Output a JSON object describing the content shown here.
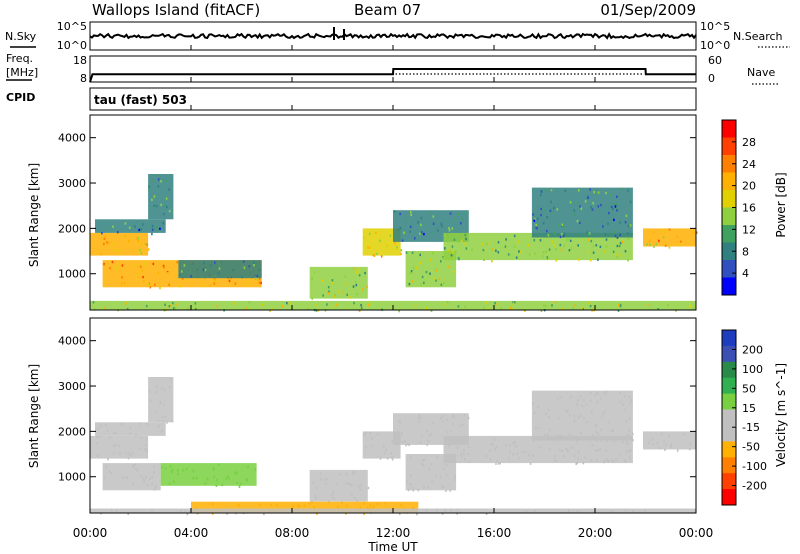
{
  "header": {
    "station": "Wallops Island (fitACF)",
    "beam": "Beam 07",
    "date": "01/Sep/2009"
  },
  "top_panel": {
    "left_label": "N.Sky",
    "right_label": "N.Search",
    "tick_top_left": "10^5",
    "tick_bottom_left": "10^0",
    "tick_top_right": "10^5",
    "tick_bottom_right": "10^0"
  },
  "freq_panel": {
    "left_label_line1": "Freq.",
    "left_label_line2": "[MHz]",
    "left_tick_top": "18",
    "left_tick_bottom": "8",
    "right_label": "Nave",
    "right_tick_top": "60",
    "right_tick_bottom": "0"
  },
  "cpid": {
    "label": "CPID",
    "value": "tau (fast) 503"
  },
  "power_colorbar": {
    "label": "Power [dB]",
    "ticks": [
      "28",
      "24",
      "20",
      "16",
      "12",
      "8",
      "4"
    ],
    "colors": [
      "#ff0000",
      "#ff4000",
      "#ff8000",
      "#ffb000",
      "#e0d000",
      "#90d040",
      "#40a060",
      "#308080",
      "#3050c0",
      "#0000ff"
    ]
  },
  "velocity_colorbar": {
    "label": "Velocity [m s^-1]",
    "ticks": [
      "200",
      "100",
      "50",
      "15",
      "-15",
      "-50",
      "-100",
      "-200"
    ],
    "colors": [
      "#1e3cbe",
      "#3c50b4",
      "#2a8a4a",
      "#30b050",
      "#78d040",
      "#c0c0c0",
      "#c0c0c0",
      "#ffb000",
      "#ff8000",
      "#ff4000",
      "#ff0000"
    ]
  },
  "chart_data": [
    {
      "type": "heatmap",
      "name": "power",
      "ylabel": "Slant Range [km]",
      "xlabel": "Time UT",
      "xlim": [
        0,
        24
      ],
      "ylim": [
        200,
        4500
      ],
      "y_ticks": [
        1000,
        2000,
        3000,
        4000
      ],
      "x_tick_labels": [
        "00:00",
        "04:00",
        "08:00",
        "12:00",
        "16:00",
        "20:00",
        "00:00"
      ],
      "regions": [
        {
          "t0": 0.0,
          "t1": 2.3,
          "r0": 1400,
          "r1": 1900,
          "level": 20
        },
        {
          "t0": 0.2,
          "t1": 3.0,
          "r0": 1900,
          "r1": 2200,
          "level": 10
        },
        {
          "t0": 2.3,
          "t1": 3.3,
          "r0": 2200,
          "r1": 3200,
          "level": 10
        },
        {
          "t0": 0.5,
          "t1": 6.8,
          "r0": 700,
          "r1": 1300,
          "level": 22
        },
        {
          "t0": 3.5,
          "t1": 6.8,
          "r0": 900,
          "r1": 1300,
          "level": 10
        },
        {
          "t0": 8.7,
          "t1": 11.0,
          "r0": 450,
          "r1": 1150,
          "level": 16
        },
        {
          "t0": 10.8,
          "t1": 12.3,
          "r0": 1400,
          "r1": 2000,
          "level": 18
        },
        {
          "t0": 12.0,
          "t1": 15.0,
          "r0": 1700,
          "r1": 2400,
          "level": 10
        },
        {
          "t0": 12.5,
          "t1": 14.5,
          "r0": 700,
          "r1": 1500,
          "level": 16
        },
        {
          "t0": 14.0,
          "t1": 21.5,
          "r0": 1300,
          "r1": 1900,
          "level": 14
        },
        {
          "t0": 17.5,
          "t1": 21.5,
          "r0": 1800,
          "r1": 2900,
          "level": 10
        },
        {
          "t0": 21.9,
          "t1": 24.0,
          "r0": 1600,
          "r1": 2000,
          "level": 20
        },
        {
          "t0": 0.0,
          "t1": 24.0,
          "r0": 200,
          "r1": 400,
          "level": 16
        }
      ]
    },
    {
      "type": "heatmap",
      "name": "velocity",
      "ylabel": "Slant Range [km]",
      "xlabel": "Time UT",
      "xlim": [
        0,
        24
      ],
      "ylim": [
        200,
        4500
      ],
      "y_ticks": [
        1000,
        2000,
        3000,
        4000
      ],
      "x_tick_labels": [
        "00:00",
        "04:00",
        "08:00",
        "12:00",
        "16:00",
        "20:00",
        "00:00"
      ],
      "regions": [
        {
          "t0": 0.0,
          "t1": 2.3,
          "r0": 1400,
          "r1": 1900,
          "level": 0
        },
        {
          "t0": 0.2,
          "t1": 3.0,
          "r0": 1900,
          "r1": 2200,
          "level": 0
        },
        {
          "t0": 2.3,
          "t1": 3.3,
          "r0": 2200,
          "r1": 3200,
          "level": 0
        },
        {
          "t0": 0.5,
          "t1": 2.8,
          "r0": 700,
          "r1": 1300,
          "level": 0
        },
        {
          "t0": 2.8,
          "t1": 6.6,
          "r0": 800,
          "r1": 1300,
          "level": 40
        },
        {
          "t0": 8.7,
          "t1": 11.0,
          "r0": 450,
          "r1": 1150,
          "level": 0
        },
        {
          "t0": 10.8,
          "t1": 12.3,
          "r0": 1400,
          "r1": 2000,
          "level": 0
        },
        {
          "t0": 12.0,
          "t1": 15.0,
          "r0": 1700,
          "r1": 2400,
          "level": 0
        },
        {
          "t0": 12.5,
          "t1": 14.5,
          "r0": 700,
          "r1": 1500,
          "level": 0
        },
        {
          "t0": 14.0,
          "t1": 21.5,
          "r0": 1300,
          "r1": 1900,
          "level": 0
        },
        {
          "t0": 17.5,
          "t1": 21.5,
          "r0": 1800,
          "r1": 2900,
          "level": 0
        },
        {
          "t0": 21.9,
          "t1": 24.0,
          "r0": 1600,
          "r1": 2000,
          "level": 0
        },
        {
          "t0": 4.0,
          "t1": 13.0,
          "r0": 200,
          "r1": 450,
          "level": -40
        },
        {
          "t0": 0.0,
          "t1": 24.0,
          "r0": 200,
          "r1": 300,
          "level": 0
        }
      ]
    },
    {
      "type": "line",
      "name": "freq",
      "x": [
        0,
        0.1,
        12.0,
        12.01,
        22.0,
        22.01,
        24.0
      ],
      "y": [
        8,
        11,
        11,
        13,
        13,
        11,
        11
      ],
      "ylim": [
        8,
        18
      ]
    }
  ]
}
